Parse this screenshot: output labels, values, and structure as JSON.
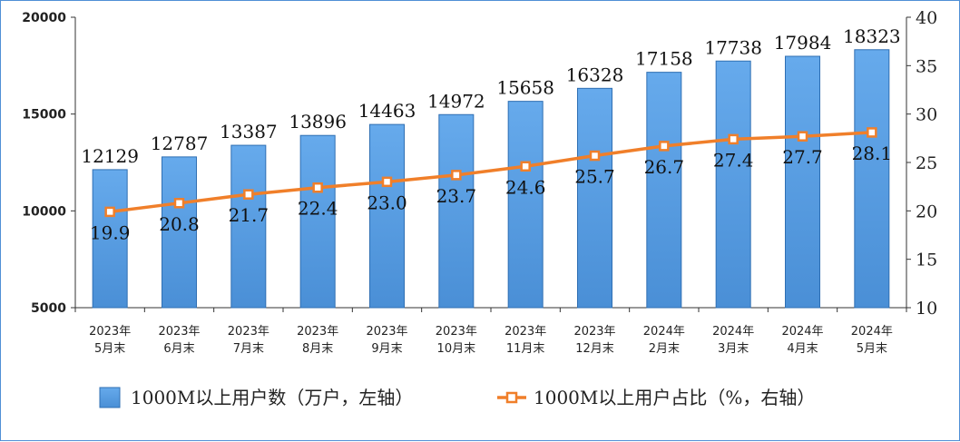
{
  "chart_data": {
    "type": "bar",
    "categories": [
      [
        "2023年",
        "5月末"
      ],
      [
        "2023年",
        "6月末"
      ],
      [
        "2023年",
        "7月末"
      ],
      [
        "2023年",
        "8月末"
      ],
      [
        "2023年",
        "9月末"
      ],
      [
        "2023年",
        "10月末"
      ],
      [
        "2023年",
        "11月末"
      ],
      [
        "2023年",
        "12月末"
      ],
      [
        "2024年",
        "2月末"
      ],
      [
        "2024年",
        "3月末"
      ],
      [
        "2024年",
        "4月末"
      ],
      [
        "2024年",
        "5月末"
      ]
    ],
    "series": [
      {
        "name": "1000M以上用户数（万户，左轴）",
        "type": "bar",
        "axis": "left",
        "color": "#5aa0e6",
        "values": [
          12129,
          12787,
          13387,
          13896,
          14463,
          14972,
          15658,
          16328,
          17158,
          17738,
          17984,
          18323
        ]
      },
      {
        "name": "1000M以上用户占比（%，右轴）",
        "type": "line",
        "axis": "right",
        "color": "#f07f2a",
        "values": [
          19.9,
          20.8,
          21.7,
          22.4,
          23.0,
          23.7,
          24.6,
          25.7,
          26.7,
          27.4,
          27.7,
          28.1
        ]
      }
    ],
    "y_left": {
      "min": 5000,
      "max": 20000,
      "ticks": [
        "5000",
        "10000",
        "15000",
        "20000"
      ]
    },
    "y_right": {
      "min": 10,
      "max": 40,
      "ticks": [
        "10",
        "15",
        "20",
        "25",
        "30",
        "35",
        "40"
      ]
    },
    "legend": "bottom",
    "grid": false
  }
}
